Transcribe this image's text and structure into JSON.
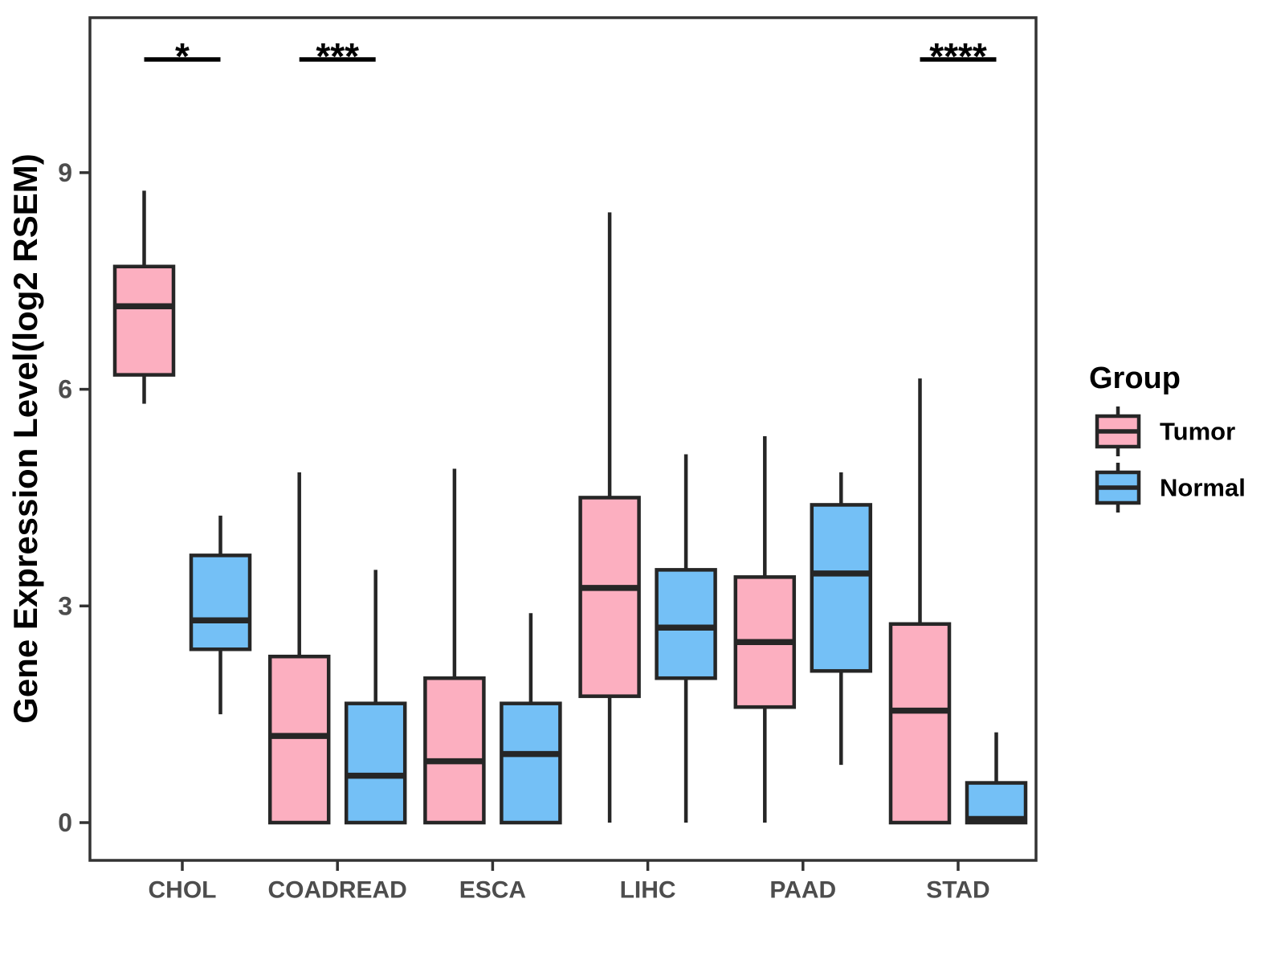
{
  "chart_data": {
    "type": "boxplot",
    "title": "",
    "xlabel": "",
    "ylabel": "Gene Expression Level(log2 RSEM)",
    "categories": [
      "CHOL",
      "COADREAD",
      "ESCA",
      "LIHC",
      "PAAD",
      "STAD"
    ],
    "yticks": [
      "0",
      "3",
      "6",
      "9"
    ],
    "ylim": [
      -0.5,
      11.15
    ],
    "grid": false,
    "legend": {
      "title": "Group",
      "position": "right",
      "entries": [
        {
          "name": "Tumor",
          "color": "#FCAFC0"
        },
        {
          "name": "Normal",
          "color": "#74C0F6"
        }
      ]
    },
    "series": [
      {
        "name": "Tumor",
        "color": "#FCAFC0",
        "boxes": [
          {
            "category": "CHOL",
            "low": 5.8,
            "q1": 6.2,
            "median": 7.15,
            "q3": 7.7,
            "high": 8.75
          },
          {
            "category": "COADREAD",
            "low": 0,
            "q1": 0,
            "median": 1.2,
            "q3": 2.3,
            "high": 4.85
          },
          {
            "category": "ESCA",
            "low": 0,
            "q1": 0,
            "median": 0.85,
            "q3": 2.0,
            "high": 4.9
          },
          {
            "category": "LIHC",
            "low": 0,
            "q1": 1.75,
            "median": 3.25,
            "q3": 4.5,
            "high": 8.45
          },
          {
            "category": "PAAD",
            "low": 0,
            "q1": 1.6,
            "median": 2.5,
            "q3": 3.4,
            "high": 5.35
          },
          {
            "category": "STAD",
            "low": 0,
            "q1": 0,
            "median": 1.55,
            "q3": 2.75,
            "high": 6.15
          }
        ]
      },
      {
        "name": "Normal",
        "color": "#74C0F6",
        "boxes": [
          {
            "category": "CHOL",
            "low": 1.5,
            "q1": 2.4,
            "median": 2.8,
            "q3": 3.7,
            "high": 4.25
          },
          {
            "category": "COADREAD",
            "low": 0,
            "q1": 0,
            "median": 0.65,
            "q3": 1.65,
            "high": 3.5
          },
          {
            "category": "ESCA",
            "low": 0,
            "q1": 0,
            "median": 0.95,
            "q3": 1.65,
            "high": 2.9
          },
          {
            "category": "LIHC",
            "low": 0,
            "q1": 2.0,
            "median": 2.7,
            "q3": 3.5,
            "high": 5.1
          },
          {
            "category": "PAAD",
            "low": 0.8,
            "q1": 2.1,
            "median": 3.45,
            "q3": 4.4,
            "high": 4.85
          },
          {
            "category": "STAD",
            "low": 0,
            "q1": 0,
            "median": 0.05,
            "q3": 0.55,
            "high": 1.25
          }
        ]
      }
    ],
    "significance": [
      {
        "category": "CHOL",
        "label": "*"
      },
      {
        "category": "COADREAD",
        "label": "***"
      },
      {
        "category": "STAD",
        "label": "****"
      }
    ],
    "style": {
      "box_stroke": "#262626",
      "axis_color": "#333333",
      "tick_label_color": "#4D4D4D",
      "text_color": "#000000",
      "background": "#FFFFFF"
    }
  }
}
